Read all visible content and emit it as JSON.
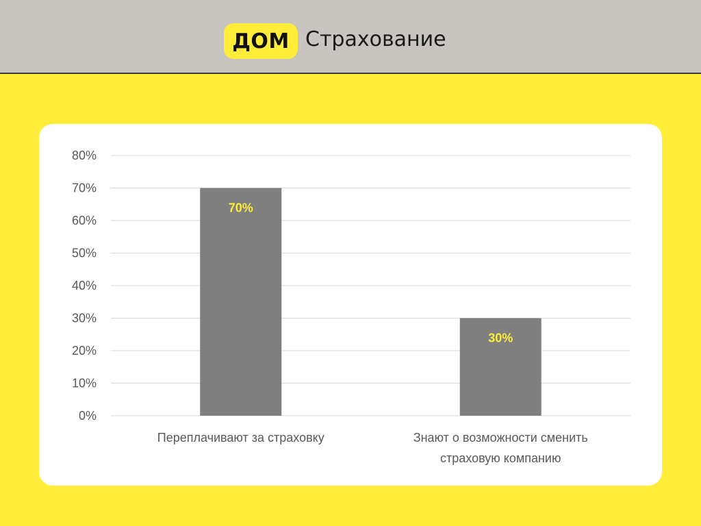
{
  "header": {
    "logo_badge": "ДОМ",
    "logo_text": "Страхование"
  },
  "colors": {
    "accent": "#ffed3a",
    "bar": "#7f7f7f",
    "header_bg": "#c8c4c0",
    "text": "#595959"
  },
  "chart_data": {
    "type": "bar",
    "categories": [
      [
        "Переплачивают за страховку"
      ],
      [
        "Знают о возможности сменить",
        "страховую компанию"
      ]
    ],
    "values": [
      70,
      30
    ],
    "data_labels": [
      "70%",
      "30%"
    ],
    "ylim": [
      0,
      80
    ],
    "yticks": [
      "0%",
      "10%",
      "20%",
      "30%",
      "40%",
      "50%",
      "60%",
      "70%",
      "80%"
    ],
    "grid": true,
    "legend": false
  }
}
